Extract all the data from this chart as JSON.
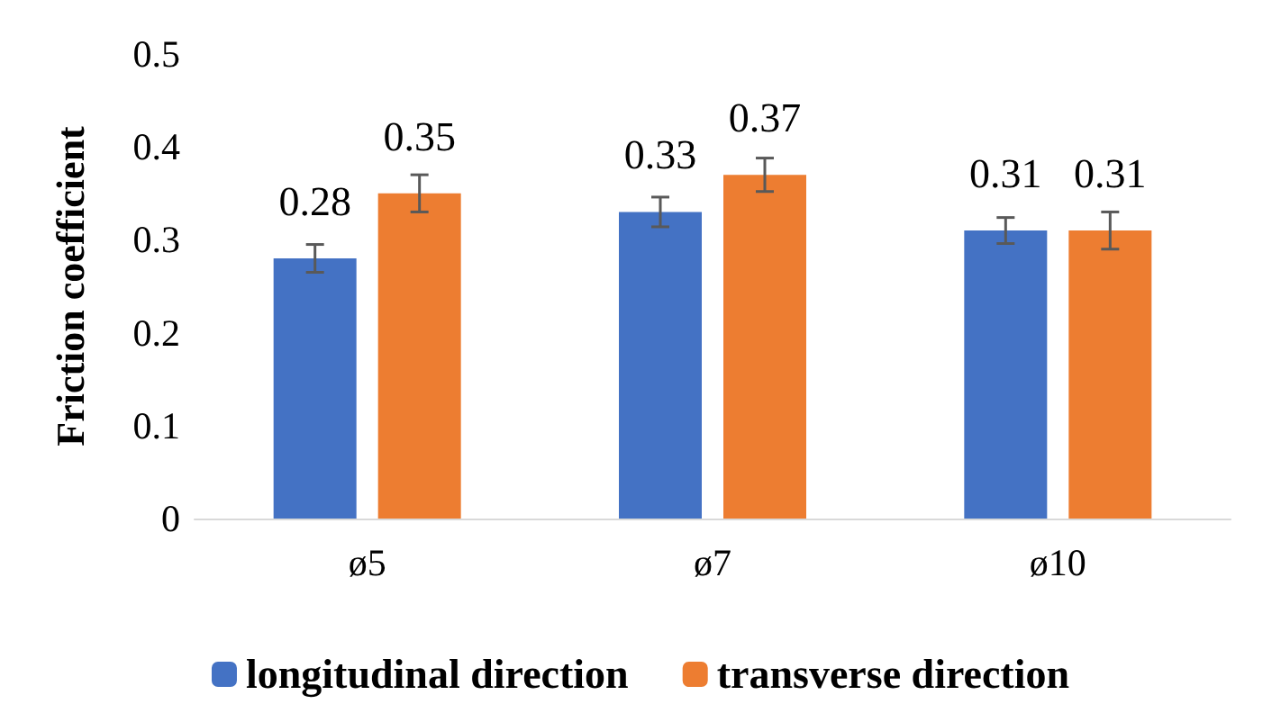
{
  "chart_data": {
    "type": "bar",
    "ylabel": "Friction coefficient",
    "categories": [
      "ø5",
      "ø7",
      "ø10"
    ],
    "series": [
      {
        "name": "longitudinal direction",
        "color": "#4472c4",
        "values": [
          0.28,
          0.33,
          0.31
        ],
        "errors": [
          0.015,
          0.016,
          0.014
        ]
      },
      {
        "name": "transverse direction",
        "color": "#ed7d31",
        "values": [
          0.35,
          0.37,
          0.31
        ],
        "errors": [
          0.02,
          0.018,
          0.02
        ]
      }
    ],
    "ylim": [
      0,
      0.5
    ],
    "yticks": [
      0,
      0.1,
      0.2,
      0.3,
      0.4,
      0.5
    ],
    "grid": false,
    "legend": "bottom",
    "data_labels": true
  }
}
